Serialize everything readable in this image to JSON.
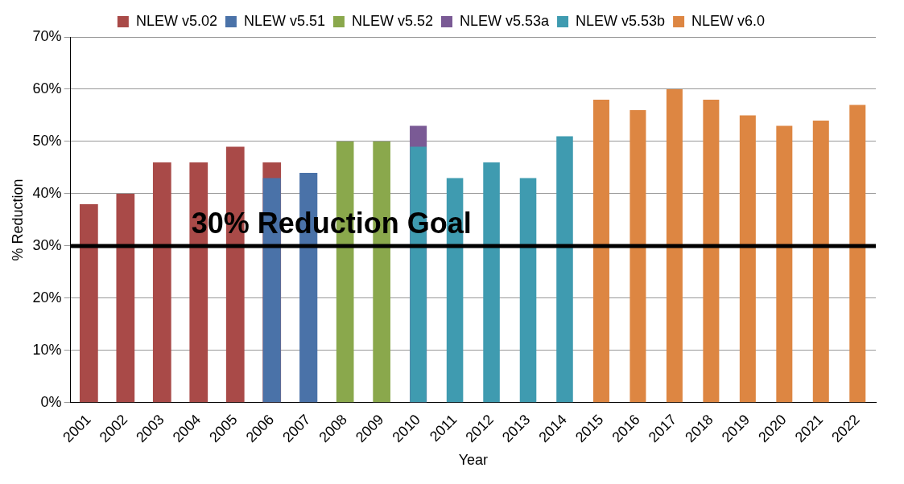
{
  "chart_data": {
    "type": "bar",
    "xlabel": "Year",
    "ylabel": "% Reduction",
    "categories": [
      "2001",
      "2002",
      "2003",
      "2004",
      "2005",
      "2006",
      "2007",
      "2008",
      "2009",
      "2010",
      "2011",
      "2012",
      "2013",
      "2014",
      "2015",
      "2016",
      "2017",
      "2018",
      "2019",
      "2020",
      "2021",
      "2022"
    ],
    "series": [
      {
        "name": "NLEW v5.02",
        "color": "#a94a48",
        "values": [
          38,
          40,
          46,
          46,
          49,
          46,
          null,
          null,
          null,
          null,
          null,
          null,
          null,
          null,
          null,
          null,
          null,
          null,
          null,
          null,
          null,
          null
        ]
      },
      {
        "name": "NLEW v5.51",
        "color": "#4a72a8",
        "values": [
          null,
          null,
          null,
          null,
          null,
          43,
          44,
          null,
          null,
          null,
          null,
          null,
          null,
          null,
          null,
          null,
          null,
          null,
          null,
          null,
          null,
          null
        ]
      },
      {
        "name": "NLEW v5.52",
        "color": "#8aa84c",
        "values": [
          null,
          null,
          null,
          null,
          null,
          null,
          null,
          50,
          50,
          null,
          null,
          null,
          null,
          null,
          null,
          null,
          null,
          null,
          null,
          null,
          null,
          null
        ]
      },
      {
        "name": "NLEW v5.53a",
        "color": "#7a5a95",
        "values": [
          null,
          null,
          null,
          null,
          null,
          null,
          null,
          null,
          null,
          53,
          null,
          null,
          null,
          null,
          null,
          null,
          null,
          null,
          null,
          null,
          null,
          null
        ]
      },
      {
        "name": "NLEW v5.53b",
        "color": "#3f9bb0",
        "values": [
          null,
          null,
          null,
          null,
          null,
          null,
          null,
          null,
          null,
          49,
          43,
          46,
          43,
          51,
          null,
          null,
          null,
          null,
          null,
          null,
          null,
          null
        ]
      },
      {
        "name": "NLEW v6.0",
        "color": "#dd8642",
        "values": [
          null,
          null,
          null,
          null,
          null,
          null,
          null,
          null,
          null,
          null,
          null,
          null,
          null,
          null,
          58,
          56,
          60,
          58,
          55,
          53,
          54,
          57
        ]
      }
    ],
    "ylim": [
      0,
      70
    ],
    "yticks": [
      {
        "value": 0,
        "label": "0%"
      },
      {
        "value": 10,
        "label": "10%"
      },
      {
        "value": 20,
        "label": "20%"
      },
      {
        "value": 30,
        "label": "30%"
      },
      {
        "value": 40,
        "label": "40%"
      },
      {
        "value": 50,
        "label": "50%"
      },
      {
        "value": 60,
        "label": "60%"
      },
      {
        "value": 70,
        "label": "70%"
      }
    ],
    "grid": "y",
    "legend": "top",
    "ref_lines": [
      {
        "axis": "y",
        "value": 30,
        "label": "30% Reduction Goal",
        "color": "#000000"
      }
    ]
  }
}
